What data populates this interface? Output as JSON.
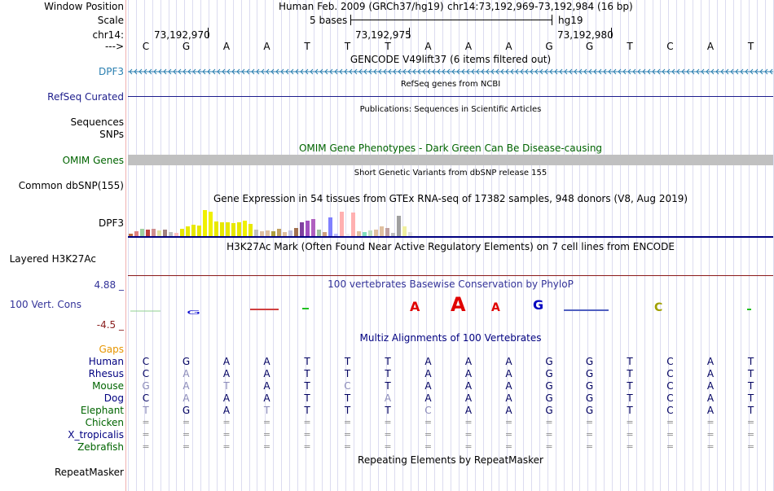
{
  "labels": {
    "window_position": "Window Position",
    "scale": "Scale",
    "chrom": "chr14:",
    "strand": "--->",
    "dpf3_gencode": "DPF3",
    "refseq": "RefSeq Curated",
    "sequences": "Sequences",
    "snps": "SNPs",
    "omim": "OMIM Genes",
    "dbsnp": "Common dbSNP(155)",
    "gtex_gene": "DPF3",
    "h3k27ac": "Layered H3K27Ac",
    "phylop_max": "4.88 _",
    "phylop_name": "100 Vert. Cons",
    "phylop_min": "-4.5 _",
    "gaps": "Gaps",
    "repeatmasker": "RepeatMasker"
  },
  "header": {
    "assembly": "Human Feb. 2009 (GRCh37/hg19)",
    "position": "chr14:73,192,969-73,192,984 (16 bp)",
    "scale_text": "5 bases",
    "scale_db": "hg19",
    "coords": [
      "73,192,970",
      "73,192,975",
      "73,192,980"
    ]
  },
  "bases": [
    "C",
    "G",
    "A",
    "A",
    "T",
    "T",
    "T",
    "A",
    "A",
    "A",
    "G",
    "G",
    "T",
    "C",
    "A",
    "T"
  ],
  "tracks": {
    "gencode_title": "GENCODE V49lift37 (6 items filtered out)",
    "refseq_title": "RefSeq genes from NCBI",
    "pubs_title": "Publications: Sequences in Scientific Articles",
    "omim_title": "OMIM Gene Phenotypes - Dark Green Can Be Disease-causing",
    "dbsnp_title": "Short Genetic Variants from dbSNP release 155",
    "gtex_title": "Gene Expression in 54 tissues from GTEx RNA-seq of 17382 samples, 948 donors (V8, Aug 2019)",
    "h3k27ac_title": "H3K27Ac Mark (Often Found Near Active Regulatory Elements) on 7 cell lines from ENCODE",
    "phylop_title": "100 vertebrates Basewise Conservation by PhyloP",
    "multiz_title": "Multiz Alignments of 100 Vertebrates",
    "repeat_title": "Repeating Elements by RepeatMasker"
  },
  "species": [
    {
      "name": "Human",
      "color": "#000080",
      "seq": [
        "C",
        "G",
        "A",
        "A",
        "T",
        "T",
        "T",
        "A",
        "A",
        "A",
        "G",
        "G",
        "T",
        "C",
        "A",
        "T"
      ],
      "faint": []
    },
    {
      "name": "Rhesus",
      "color": "#000080",
      "seq": [
        "C",
        "A",
        "A",
        "A",
        "T",
        "T",
        "T",
        "A",
        "A",
        "A",
        "G",
        "G",
        "T",
        "C",
        "A",
        "T"
      ],
      "faint": [
        1
      ]
    },
    {
      "name": "Mouse",
      "color": "#006400",
      "seq": [
        "G",
        "A",
        "T",
        "A",
        "T",
        "C",
        "T",
        "A",
        "A",
        "A",
        "G",
        "G",
        "T",
        "C",
        "A",
        "T"
      ],
      "faint": [
        0,
        1,
        2,
        5
      ]
    },
    {
      "name": "Dog",
      "color": "#000080",
      "seq": [
        "C",
        "A",
        "A",
        "A",
        "T",
        "T",
        "A",
        "A",
        "A",
        "A",
        "G",
        "G",
        "T",
        "C",
        "A",
        "T"
      ],
      "faint": [
        1,
        6
      ]
    },
    {
      "name": "Elephant",
      "color": "#006400",
      "seq": [
        "T",
        "G",
        "A",
        "T",
        "T",
        "T",
        "T",
        "C",
        "A",
        "A",
        "G",
        "G",
        "T",
        "C",
        "A",
        "T"
      ],
      "faint": [
        0,
        3,
        7
      ]
    },
    {
      "name": "Chicken",
      "color": "#006400",
      "seq": [
        "=",
        "=",
        "=",
        "=",
        "=",
        "=",
        "=",
        "=",
        "=",
        "=",
        "=",
        "=",
        "=",
        "=",
        "=",
        "="
      ],
      "faint": []
    },
    {
      "name": "X_tropicalis",
      "color": "#000080",
      "seq": [
        "=",
        "=",
        "=",
        "=",
        "=",
        "=",
        "=",
        "=",
        "=",
        "=",
        "=",
        "=",
        "=",
        "=",
        "=",
        "="
      ],
      "faint": []
    },
    {
      "name": "Zebrafish",
      "color": "#006400",
      "seq": [
        "=",
        "=",
        "=",
        "=",
        "=",
        "=",
        "=",
        "=",
        "=",
        "=",
        "=",
        "=",
        "=",
        "=",
        "=",
        "="
      ],
      "faint": []
    }
  ],
  "gtex_values": [
    3,
    6,
    9,
    8,
    9,
    7,
    8,
    5,
    4,
    9,
    12,
    14,
    13,
    32,
    30,
    18,
    17,
    17,
    16,
    17,
    19,
    15,
    8,
    6,
    7,
    6,
    9,
    5,
    7,
    10,
    17,
    19,
    21,
    8,
    5,
    23,
    3,
    30,
    3,
    29,
    6,
    5,
    7,
    8,
    12,
    10,
    4,
    25,
    12,
    5
  ],
  "gtex_colors": [
    "#c07040",
    "#e08080",
    "#a0d0a0",
    "#c04040",
    "#d09090",
    "#e0e0a0",
    "#a08080",
    "#c0c0c0",
    "#ffc0c0",
    "#e8e800",
    "#e8e800",
    "#e8e800",
    "#e8e800",
    "#f0f000",
    "#f0f000",
    "#e8e800",
    "#e8e800",
    "#e8e800",
    "#e8e800",
    "#e8e800",
    "#f0f000",
    "#e8e800",
    "#c0c0c0",
    "#e0c0a0",
    "#e0c0a0",
    "#b0a040",
    "#c0a060",
    "#e0c0a0",
    "#c0c0e0",
    "#a07050",
    "#8040a0",
    "#a050c0",
    "#b060c0",
    "#a0c0a0",
    "#d0a080",
    "#8080ff",
    "#c0c0ff",
    "#ffb0b0",
    "#f0f0f0",
    "#ffb0b0",
    "#e0c0a0",
    "#80e0c0",
    "#c0e0c0",
    "#e0c0a0",
    "#e0c0a0",
    "#c0a0a0",
    "#c0c0c0",
    "#a0a0a0",
    "#f0f0a0",
    "#e0e0e0"
  ]
}
